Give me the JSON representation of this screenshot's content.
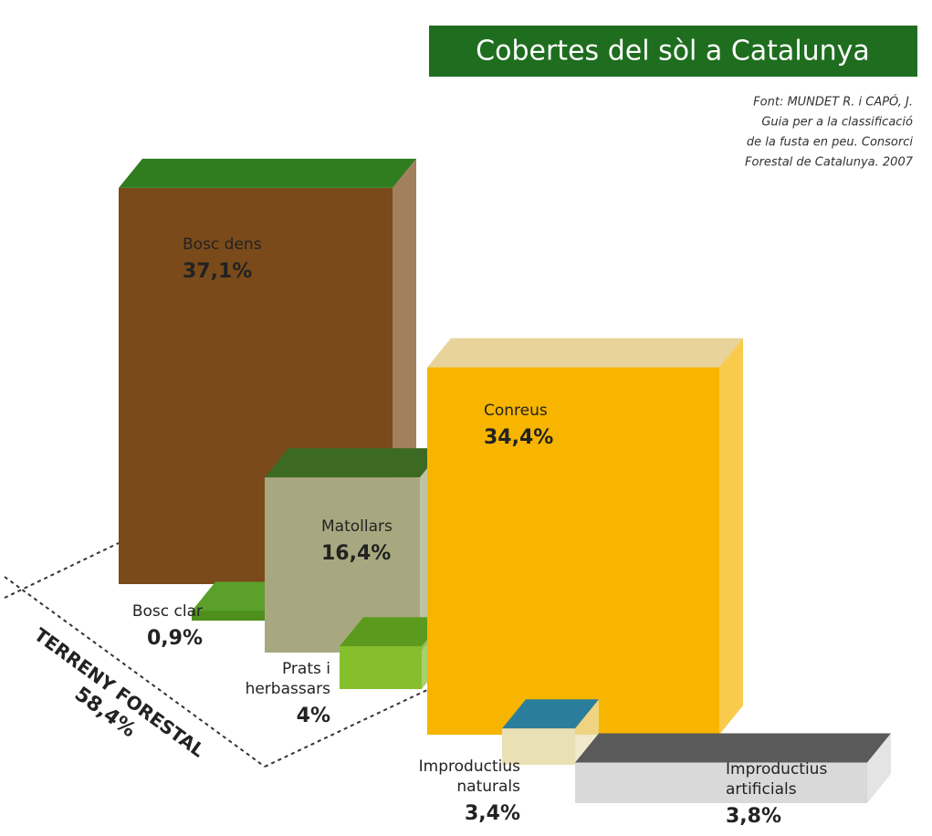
{
  "chart_data": {
    "type": "bar",
    "title": "Cobertes del sòl a Catalunya",
    "source": [
      "Font: MUNDET R. i CAPÓ, J.",
      "Guia per a la classificació",
      "de la fusta en peu. Consorci",
      "Forestal de Catalunya. 2007"
    ],
    "categories": [
      [
        "Bosc dens"
      ],
      [
        "Bosc clar"
      ],
      [
        "Matollars"
      ],
      [
        "Prats i",
        "herbassars"
      ],
      [
        "Conreus"
      ],
      [
        "Improductius",
        "naturals"
      ],
      [
        "Improductius",
        "artificials"
      ]
    ],
    "values": [
      37.1,
      0.9,
      16.4,
      4,
      34.4,
      3.4,
      3.8
    ],
    "value_labels": [
      "37,1%",
      "0,9%",
      "16,4%",
      "4%",
      "34,4%",
      "3,4%",
      "3,8%"
    ],
    "colors": [
      "#7a4a1a",
      "#4f8f1e",
      "#a7a87f",
      "#86bf2c",
      "#f7b500",
      "#e9e0b6",
      "#d9d9d9"
    ],
    "group": {
      "label": "TERRENY FORESTAL",
      "total_label": "58,4%"
    }
  }
}
